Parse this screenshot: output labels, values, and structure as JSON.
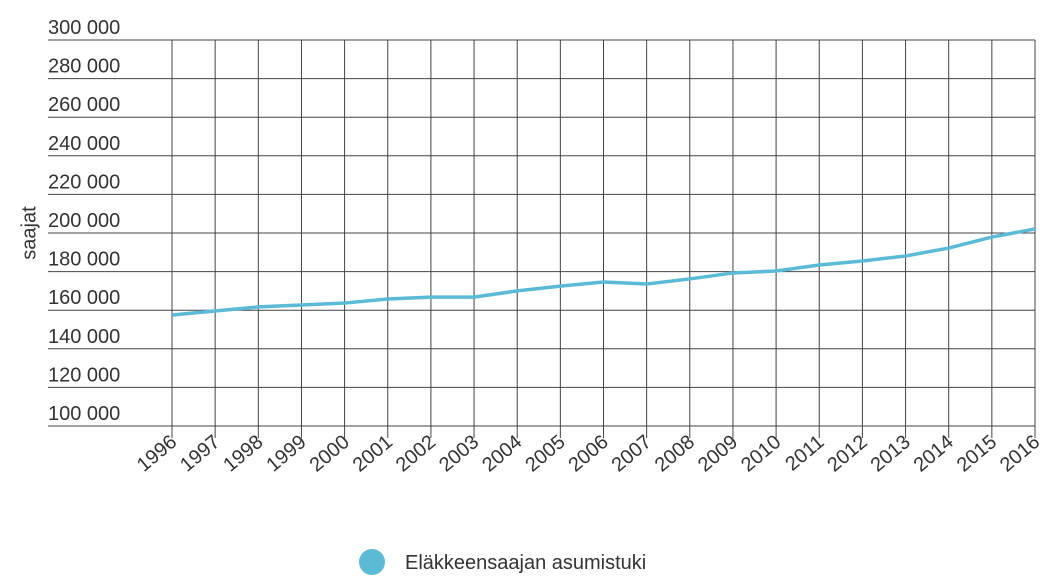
{
  "chart_data": {
    "type": "line",
    "y_label": "saajat",
    "x": [
      "1996",
      "1997",
      "1998",
      "1999",
      "2000",
      "2001",
      "2002",
      "2003",
      "2004",
      "2005",
      "2006",
      "2007",
      "2008",
      "2009",
      "2010",
      "2011",
      "2012",
      "2013",
      "2014",
      "2015",
      "2016"
    ],
    "series": [
      {
        "name": "Eläkkeensaajan asumistuki",
        "color": "#5bbad5",
        "values": [
          157500,
          159600,
          161700,
          162700,
          163700,
          165800,
          166800,
          166800,
          170000,
          172500,
          174600,
          173600,
          176200,
          179300,
          180300,
          183400,
          185500,
          188100,
          192200,
          197900,
          202100
        ]
      }
    ],
    "ylim": [
      100000,
      300000
    ],
    "yticks": [
      {
        "value": 100000,
        "label": "100 000"
      },
      {
        "value": 120000,
        "label": "120 000"
      },
      {
        "value": 140000,
        "label": "140 000"
      },
      {
        "value": 160000,
        "label": "160 000"
      },
      {
        "value": 180000,
        "label": "180 000"
      },
      {
        "value": 200000,
        "label": "200 000"
      },
      {
        "value": 220000,
        "label": "220 000"
      },
      {
        "value": 240000,
        "label": "240 000"
      },
      {
        "value": 260000,
        "label": "260 000"
      },
      {
        "value": 280000,
        "label": "280 000"
      },
      {
        "value": 300000,
        "label": "300 000"
      }
    ],
    "grid": true,
    "legend": "bottom"
  }
}
